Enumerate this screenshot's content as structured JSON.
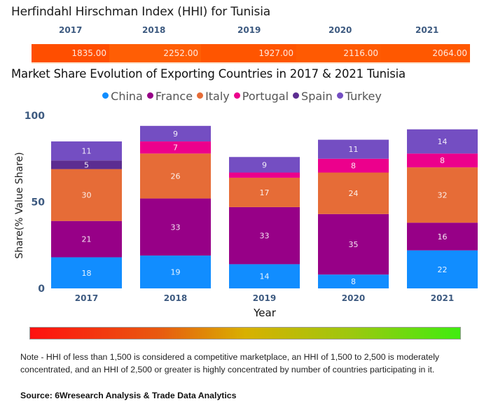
{
  "hhi": {
    "title": "Herfindahl Hirschman Index (HHI) for Tunisia",
    "years": [
      "2017",
      "2018",
      "2019",
      "2020",
      "2021"
    ],
    "values": [
      "1835.00",
      "2252.00",
      "1927.00",
      "2116.00",
      "2064.00"
    ],
    "strip_color": "#ff5a00"
  },
  "chart_data": {
    "type": "bar",
    "stacked": true,
    "title": "Market Share Evolution of Exporting Countries in 2017 & 2021 Tunisia",
    "xlabel": "Year",
    "ylabel": "Share(% Value Share)",
    "categories": [
      "2017",
      "2018",
      "2019",
      "2020",
      "2021"
    ],
    "ylim": [
      0,
      100
    ],
    "yticks": [
      "0",
      "50",
      "100"
    ],
    "legend_position": "top-center",
    "grid": false,
    "series": [
      {
        "name": "China",
        "color": "#118dff",
        "values": [
          18,
          19,
          14,
          8,
          22
        ]
      },
      {
        "name": "France",
        "color": "#970087",
        "values": [
          21,
          33,
          33,
          35,
          16
        ]
      },
      {
        "name": "Italy",
        "color": "#e66c37",
        "values": [
          30,
          26,
          17,
          24,
          32
        ]
      },
      {
        "name": "Portugal",
        "color": "#ec008c",
        "values": [
          0,
          7,
          3,
          8,
          8
        ]
      },
      {
        "name": "Spain",
        "color": "#5c2d91",
        "values": [
          5,
          0,
          0,
          0,
          0
        ]
      },
      {
        "name": "Turkey",
        "color": "#744ec2",
        "values": [
          11,
          9,
          9,
          11,
          14
        ]
      }
    ],
    "data_labels": [
      [
        "18",
        "19",
        "14",
        "8",
        "22"
      ],
      [
        "21",
        "33",
        "33",
        "35",
        "16"
      ],
      [
        "30",
        "26",
        "17",
        "24",
        "32"
      ],
      [
        "",
        "7",
        "",
        "8",
        "8"
      ],
      [
        "5",
        "",
        "",
        "",
        ""
      ],
      [
        "11",
        "9",
        "9",
        "11",
        "14"
      ]
    ]
  },
  "scale_bar": {
    "colors": [
      "#ff1010",
      "#e85a10",
      "#d8b000",
      "#9cc810",
      "#40ec10"
    ]
  },
  "note": "Note - HHI of less than 1,500 is considered a competitive marketplace, an HHI of 1,500 to 2,500 is moderately concentrated, and an HHI of 2,500 or greater is highly concentrated by number of countries participating in it.",
  "source": "Source: 6Wresearch Analysis & Trade Data Analytics"
}
